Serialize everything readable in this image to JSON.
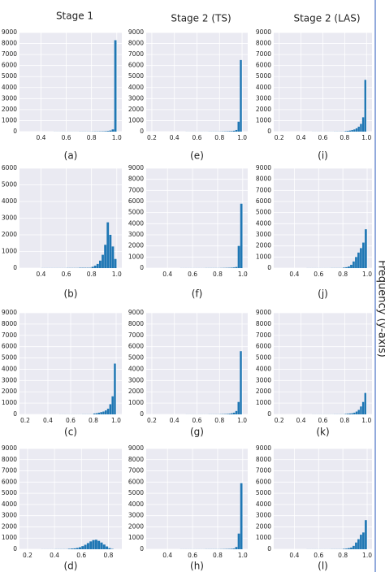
{
  "side_label": "Frequency (y-axis)",
  "chart_data": [
    {
      "type": "histogram",
      "title": "Stage 1",
      "caption": "(a)",
      "color": "#1f77b4",
      "grid": true,
      "bins": [
        0.2,
        0.22,
        0.24,
        0.26,
        0.28,
        0.3,
        0.32,
        0.34,
        0.36,
        0.38,
        0.4,
        0.42,
        0.44,
        0.46,
        0.48,
        0.5,
        0.52,
        0.54,
        0.56,
        0.58,
        0.6,
        0.62,
        0.64,
        0.66,
        0.68,
        0.7,
        0.72,
        0.74,
        0.76,
        0.78,
        0.8,
        0.82,
        0.84,
        0.86,
        0.88,
        0.9,
        0.92,
        0.94,
        0.96,
        0.98,
        1
      ],
      "counts": [
        0,
        0,
        0,
        0,
        0,
        0,
        0,
        0,
        0,
        0,
        0,
        0,
        0,
        0,
        0,
        5,
        5,
        5,
        5,
        5,
        5,
        5,
        5,
        5,
        5,
        10,
        10,
        10,
        10,
        10,
        15,
        20,
        20,
        25,
        30,
        40,
        60,
        100,
        200,
        8300
      ],
      "xlim": [
        0.23,
        1.04
      ],
      "xticks": [
        0.4,
        0.6,
        0.8,
        {
          "value": 1,
          "label": "1.0"
        }
      ],
      "ylim": [
        0,
        9000
      ],
      "yticks": [
        0,
        1000,
        2000,
        3000,
        4000,
        5000,
        6000,
        7000,
        8000,
        9000
      ]
    },
    {
      "type": "histogram",
      "caption": "(b)",
      "color": "#1f77b4",
      "grid": true,
      "bins": [
        0.2,
        0.22,
        0.24,
        0.26,
        0.28,
        0.3,
        0.32,
        0.34,
        0.36,
        0.38,
        0.4,
        0.42,
        0.44,
        0.46,
        0.48,
        0.5,
        0.52,
        0.54,
        0.56,
        0.58,
        0.6,
        0.62,
        0.64,
        0.66,
        0.68,
        0.7,
        0.72,
        0.74,
        0.76,
        0.78,
        0.8,
        0.82,
        0.84,
        0.86,
        0.88,
        0.9,
        0.92,
        0.94,
        0.96,
        0.98,
        1
      ],
      "counts": [
        0,
        0,
        0,
        0,
        0,
        0,
        0,
        0,
        0,
        0,
        5,
        5,
        5,
        5,
        5,
        5,
        5,
        5,
        5,
        5,
        10,
        10,
        10,
        10,
        10,
        20,
        20,
        20,
        20,
        20,
        80,
        150,
        250,
        450,
        800,
        1400,
        2750,
        2000,
        1300,
        550
      ],
      "xlim": [
        0.23,
        1.04
      ],
      "xticks": [
        0.4,
        0.6,
        0.8,
        {
          "value": 1,
          "label": "1.0"
        }
      ],
      "ylim": [
        0,
        6000
      ],
      "yticks": [
        0,
        1000,
        2000,
        3000,
        4000,
        5000,
        6000
      ]
    },
    {
      "type": "histogram",
      "caption": "(c)",
      "color": "#1f77b4",
      "grid": true,
      "bins": [
        0.2,
        0.22,
        0.24,
        0.26,
        0.28,
        0.3,
        0.32,
        0.34,
        0.36,
        0.38,
        0.4,
        0.42,
        0.44,
        0.46,
        0.48,
        0.5,
        0.52,
        0.54,
        0.56,
        0.58,
        0.6,
        0.62,
        0.64,
        0.66,
        0.68,
        0.7,
        0.72,
        0.74,
        0.76,
        0.78,
        0.8,
        0.82,
        0.84,
        0.86,
        0.88,
        0.9,
        0.92,
        0.94,
        0.96,
        0.98,
        1
      ],
      "counts": [
        0,
        0,
        0,
        0,
        0,
        0,
        0,
        0,
        0,
        0,
        0,
        0,
        0,
        0,
        0,
        5,
        5,
        5,
        5,
        5,
        5,
        5,
        5,
        5,
        5,
        10,
        10,
        10,
        10,
        10,
        80,
        100,
        150,
        200,
        250,
        350,
        500,
        900,
        1600,
        4500
      ],
      "xlim": [
        0.15,
        1.05
      ],
      "xticks": [
        0.2,
        0.4,
        0.6,
        0.8,
        {
          "value": 1,
          "label": "1.0"
        }
      ],
      "ylim": [
        0,
        9000
      ],
      "yticks": [
        0,
        1000,
        2000,
        3000,
        4000,
        5000,
        6000,
        7000,
        8000,
        9000
      ]
    },
    {
      "type": "histogram",
      "caption": "(d)",
      "color": "#1f77b4",
      "grid": true,
      "bins": [
        0.2,
        0.22,
        0.24,
        0.26,
        0.28,
        0.3,
        0.32,
        0.34,
        0.36,
        0.38,
        0.4,
        0.42,
        0.44,
        0.46,
        0.48,
        0.5,
        0.52,
        0.54,
        0.56,
        0.58,
        0.6,
        0.62,
        0.64,
        0.66,
        0.68,
        0.7,
        0.72,
        0.74,
        0.76,
        0.78,
        0.8,
        0.82,
        0.84,
        0.86,
        0.88,
        0.9,
        0.92,
        0.94,
        0.96,
        0.98,
        1
      ],
      "counts": [
        0,
        0,
        0,
        0,
        0,
        5,
        5,
        5,
        5,
        5,
        10,
        10,
        10,
        10,
        10,
        40,
        60,
        80,
        120,
        180,
        280,
        400,
        550,
        700,
        820,
        850,
        750,
        600,
        420,
        250,
        100,
        30,
        0,
        0,
        0,
        0,
        0,
        0,
        0,
        0
      ],
      "xlim": [
        0.14,
        0.9
      ],
      "xticks": [
        0.2,
        0.4,
        0.6,
        0.8
      ],
      "ylim": [
        0,
        9000
      ],
      "yticks": [
        0,
        1000,
        2000,
        3000,
        4000,
        5000,
        6000,
        7000,
        8000,
        9000
      ]
    },
    {
      "type": "histogram",
      "title": "Stage 2 (TS)",
      "caption": "(e)",
      "color": "#1f77b4",
      "grid": true,
      "bins": [
        0.2,
        0.22,
        0.24,
        0.26,
        0.28,
        0.3,
        0.32,
        0.34,
        0.36,
        0.38,
        0.4,
        0.42,
        0.44,
        0.46,
        0.48,
        0.5,
        0.52,
        0.54,
        0.56,
        0.58,
        0.6,
        0.62,
        0.64,
        0.66,
        0.68,
        0.7,
        0.72,
        0.74,
        0.76,
        0.78,
        0.8,
        0.82,
        0.84,
        0.86,
        0.88,
        0.9,
        0.92,
        0.94,
        0.96,
        0.98,
        1
      ],
      "counts": [
        0,
        0,
        0,
        0,
        0,
        0,
        0,
        0,
        0,
        0,
        0,
        0,
        0,
        0,
        0,
        5,
        5,
        5,
        5,
        5,
        5,
        5,
        5,
        5,
        5,
        10,
        10,
        10,
        10,
        10,
        15,
        20,
        25,
        30,
        40,
        50,
        80,
        150,
        900,
        6500
      ],
      "xlim": [
        0.15,
        1.05
      ],
      "xticks": [
        0.2,
        0.4,
        0.6,
        0.8,
        {
          "value": 1,
          "label": "1.0"
        }
      ],
      "ylim": [
        0,
        9000
      ],
      "yticks": [
        0,
        1000,
        2000,
        3000,
        4000,
        5000,
        6000,
        7000,
        8000,
        9000
      ]
    },
    {
      "type": "histogram",
      "caption": "(f)",
      "color": "#1f77b4",
      "grid": true,
      "bins": [
        0.2,
        0.22,
        0.24,
        0.26,
        0.28,
        0.3,
        0.32,
        0.34,
        0.36,
        0.38,
        0.4,
        0.42,
        0.44,
        0.46,
        0.48,
        0.5,
        0.52,
        0.54,
        0.56,
        0.58,
        0.6,
        0.62,
        0.64,
        0.66,
        0.68,
        0.7,
        0.72,
        0.74,
        0.76,
        0.78,
        0.8,
        0.82,
        0.84,
        0.86,
        0.88,
        0.9,
        0.92,
        0.94,
        0.96,
        0.98,
        1
      ],
      "counts": [
        0,
        0,
        0,
        0,
        0,
        0,
        0,
        0,
        0,
        0,
        0,
        0,
        0,
        0,
        0,
        5,
        5,
        5,
        5,
        5,
        5,
        5,
        5,
        5,
        5,
        10,
        10,
        10,
        10,
        10,
        10,
        15,
        20,
        25,
        30,
        40,
        60,
        100,
        2000,
        5800
      ],
      "xlim": [
        0.23,
        1.04
      ],
      "xticks": [
        0.4,
        0.6,
        0.8,
        {
          "value": 1,
          "label": "1.0"
        }
      ],
      "ylim": [
        0,
        9000
      ],
      "yticks": [
        0,
        1000,
        2000,
        3000,
        4000,
        5000,
        6000,
        7000,
        8000,
        9000
      ]
    },
    {
      "type": "histogram",
      "caption": "(g)",
      "color": "#1f77b4",
      "grid": true,
      "bins": [
        0.2,
        0.22,
        0.24,
        0.26,
        0.28,
        0.3,
        0.32,
        0.34,
        0.36,
        0.38,
        0.4,
        0.42,
        0.44,
        0.46,
        0.48,
        0.5,
        0.52,
        0.54,
        0.56,
        0.58,
        0.6,
        0.62,
        0.64,
        0.66,
        0.68,
        0.7,
        0.72,
        0.74,
        0.76,
        0.78,
        0.8,
        0.82,
        0.84,
        0.86,
        0.88,
        0.9,
        0.92,
        0.94,
        0.96,
        0.98,
        1
      ],
      "counts": [
        0,
        0,
        0,
        0,
        0,
        0,
        0,
        0,
        0,
        0,
        0,
        0,
        0,
        0,
        0,
        5,
        5,
        5,
        5,
        5,
        5,
        5,
        5,
        5,
        5,
        10,
        10,
        10,
        10,
        10,
        20,
        25,
        30,
        40,
        60,
        100,
        150,
        300,
        1100,
        5600
      ],
      "xlim": [
        0.15,
        1.05
      ],
      "xticks": [
        0.2,
        0.4,
        0.6,
        0.8,
        {
          "value": 1,
          "label": "1.0"
        }
      ],
      "ylim": [
        0,
        9000
      ],
      "yticks": [
        0,
        1000,
        2000,
        3000,
        4000,
        5000,
        6000,
        7000,
        8000,
        9000
      ]
    },
    {
      "type": "histogram",
      "caption": "(h)",
      "color": "#1f77b4",
      "grid": true,
      "bins": [
        0.2,
        0.22,
        0.24,
        0.26,
        0.28,
        0.3,
        0.32,
        0.34,
        0.36,
        0.38,
        0.4,
        0.42,
        0.44,
        0.46,
        0.48,
        0.5,
        0.52,
        0.54,
        0.56,
        0.58,
        0.6,
        0.62,
        0.64,
        0.66,
        0.68,
        0.7,
        0.72,
        0.74,
        0.76,
        0.78,
        0.8,
        0.82,
        0.84,
        0.86,
        0.88,
        0.9,
        0.92,
        0.94,
        0.96,
        0.98,
        1
      ],
      "counts": [
        0,
        0,
        0,
        0,
        0,
        0,
        0,
        0,
        0,
        0,
        0,
        0,
        0,
        0,
        0,
        5,
        5,
        5,
        5,
        5,
        5,
        5,
        5,
        5,
        5,
        10,
        10,
        10,
        10,
        10,
        10,
        15,
        20,
        25,
        30,
        40,
        60,
        200,
        1400,
        5900
      ],
      "xlim": [
        0.23,
        1.04
      ],
      "xticks": [
        0.4,
        0.6,
        0.8,
        {
          "value": 1,
          "label": "1.0"
        }
      ],
      "ylim": [
        0,
        9000
      ],
      "yticks": [
        0,
        1000,
        2000,
        3000,
        4000,
        5000,
        6000,
        7000,
        8000,
        9000
      ]
    },
    {
      "type": "histogram",
      "title": "Stage 2 (LAS)",
      "caption": "(i)",
      "color": "#1f77b4",
      "grid": true,
      "bins": [
        0.2,
        0.22,
        0.24,
        0.26,
        0.28,
        0.3,
        0.32,
        0.34,
        0.36,
        0.38,
        0.4,
        0.42,
        0.44,
        0.46,
        0.48,
        0.5,
        0.52,
        0.54,
        0.56,
        0.58,
        0.6,
        0.62,
        0.64,
        0.66,
        0.68,
        0.7,
        0.72,
        0.74,
        0.76,
        0.78,
        0.8,
        0.82,
        0.84,
        0.86,
        0.88,
        0.9,
        0.92,
        0.94,
        0.96,
        0.98,
        1
      ],
      "counts": [
        0,
        0,
        0,
        0,
        0,
        0,
        0,
        0,
        0,
        0,
        0,
        0,
        0,
        0,
        0,
        5,
        5,
        5,
        5,
        5,
        5,
        5,
        5,
        5,
        5,
        10,
        10,
        10,
        10,
        10,
        50,
        70,
        100,
        150,
        200,
        300,
        450,
        700,
        1300,
        4700
      ],
      "xlim": [
        0.15,
        1.05
      ],
      "xticks": [
        0.2,
        0.4,
        0.6,
        0.8,
        {
          "value": 1,
          "label": "1.0"
        }
      ],
      "ylim": [
        0,
        9000
      ],
      "yticks": [
        0,
        1000,
        2000,
        3000,
        4000,
        5000,
        6000,
        7000,
        8000,
        9000
      ]
    },
    {
      "type": "histogram",
      "caption": "(j)",
      "color": "#1f77b4",
      "grid": true,
      "bins": [
        0.2,
        0.22,
        0.24,
        0.26,
        0.28,
        0.3,
        0.32,
        0.34,
        0.36,
        0.38,
        0.4,
        0.42,
        0.44,
        0.46,
        0.48,
        0.5,
        0.52,
        0.54,
        0.56,
        0.58,
        0.6,
        0.62,
        0.64,
        0.66,
        0.68,
        0.7,
        0.72,
        0.74,
        0.76,
        0.78,
        0.8,
        0.82,
        0.84,
        0.86,
        0.88,
        0.9,
        0.92,
        0.94,
        0.96,
        0.98,
        1
      ],
      "counts": [
        0,
        0,
        0,
        0,
        0,
        0,
        0,
        0,
        0,
        0,
        0,
        0,
        0,
        0,
        0,
        5,
        5,
        5,
        5,
        5,
        5,
        5,
        5,
        5,
        5,
        10,
        10,
        10,
        10,
        10,
        50,
        80,
        150,
        300,
        600,
        1000,
        1400,
        1800,
        2300,
        3500
      ],
      "xlim": [
        0.23,
        1.04
      ],
      "xticks": [
        0.4,
        0.6,
        0.8,
        {
          "value": 1,
          "label": "1.0"
        }
      ],
      "ylim": [
        0,
        9000
      ],
      "yticks": [
        0,
        1000,
        2000,
        3000,
        4000,
        5000,
        6000,
        7000,
        8000,
        9000
      ]
    },
    {
      "type": "histogram",
      "caption": "(k)",
      "color": "#1f77b4",
      "grid": true,
      "bins": [
        0.2,
        0.22,
        0.24,
        0.26,
        0.28,
        0.3,
        0.32,
        0.34,
        0.36,
        0.38,
        0.4,
        0.42,
        0.44,
        0.46,
        0.48,
        0.5,
        0.52,
        0.54,
        0.56,
        0.58,
        0.6,
        0.62,
        0.64,
        0.66,
        0.68,
        0.7,
        0.72,
        0.74,
        0.76,
        0.78,
        0.8,
        0.82,
        0.84,
        0.86,
        0.88,
        0.9,
        0.92,
        0.94,
        0.96,
        0.98,
        1
      ],
      "counts": [
        0,
        0,
        0,
        0,
        0,
        0,
        0,
        0,
        0,
        0,
        0,
        0,
        0,
        0,
        0,
        5,
        5,
        5,
        5,
        5,
        5,
        5,
        5,
        5,
        5,
        10,
        10,
        10,
        10,
        10,
        40,
        60,
        80,
        100,
        150,
        250,
        400,
        700,
        1100,
        1900
      ],
      "xlim": [
        0.15,
        1.05
      ],
      "xticks": [
        0.2,
        0.4,
        0.6,
        0.8,
        {
          "value": 1,
          "label": "1.0"
        }
      ],
      "ylim": [
        0,
        9000
      ],
      "yticks": [
        0,
        1000,
        2000,
        3000,
        4000,
        5000,
        6000,
        7000,
        8000,
        9000
      ]
    },
    {
      "type": "histogram",
      "caption": "(l)",
      "color": "#1f77b4",
      "grid": true,
      "bins": [
        0.2,
        0.22,
        0.24,
        0.26,
        0.28,
        0.3,
        0.32,
        0.34,
        0.36,
        0.38,
        0.4,
        0.42,
        0.44,
        0.46,
        0.48,
        0.5,
        0.52,
        0.54,
        0.56,
        0.58,
        0.6,
        0.62,
        0.64,
        0.66,
        0.68,
        0.7,
        0.72,
        0.74,
        0.76,
        0.78,
        0.8,
        0.82,
        0.84,
        0.86,
        0.88,
        0.9,
        0.92,
        0.94,
        0.96,
        0.98,
        1
      ],
      "counts": [
        0,
        0,
        0,
        0,
        0,
        0,
        0,
        0,
        0,
        0,
        0,
        0,
        0,
        0,
        0,
        5,
        5,
        5,
        5,
        5,
        5,
        5,
        5,
        5,
        5,
        10,
        10,
        10,
        10,
        10,
        40,
        60,
        100,
        150,
        300,
        600,
        900,
        1300,
        1500,
        2600
      ],
      "xlim": [
        0.23,
        1.04
      ],
      "xticks": [
        0.4,
        0.6,
        0.8,
        {
          "value": 1,
          "label": "1.0"
        }
      ],
      "ylim": [
        0,
        9000
      ],
      "yticks": [
        0,
        1000,
        2000,
        3000,
        4000,
        5000,
        6000,
        7000,
        8000,
        9000
      ]
    }
  ]
}
